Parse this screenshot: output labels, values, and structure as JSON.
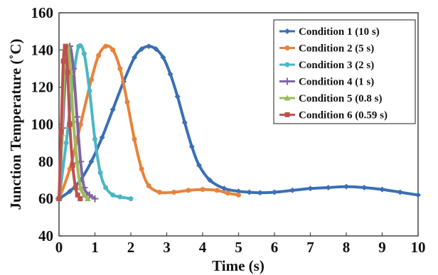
{
  "chart_data": {
    "type": "line",
    "title": "",
    "xlabel": "Time (s)",
    "ylabel": "Junction Temperature (˚C)",
    "xlim": [
      0,
      10
    ],
    "ylim": [
      40,
      160
    ],
    "x_ticks": [
      "0",
      "1",
      "2",
      "3",
      "4",
      "5",
      "6",
      "7",
      "8",
      "9",
      "10"
    ],
    "y_ticks": [
      "40",
      "60",
      "80",
      "100",
      "120",
      "140",
      "160"
    ],
    "grid": false,
    "legend_position": "top-right",
    "series": [
      {
        "name": "Condition 1 (10 s)",
        "color": "#3a6fb5",
        "marker": "diamond",
        "x": [
          0.0,
          0.3,
          0.6,
          0.9,
          1.2,
          1.5,
          1.8,
          2.1,
          2.3,
          2.5,
          2.7,
          2.9,
          3.1,
          3.3,
          3.5,
          3.7,
          3.9,
          4.2,
          4.6,
          5.0,
          5.3,
          5.6,
          6.0,
          6.5,
          7.0,
          7.5,
          8.0,
          8.5,
          9.0,
          9.5,
          10.0
        ],
        "y": [
          60,
          64,
          70,
          80,
          93,
          108,
          123,
          136,
          140.5,
          142,
          140.5,
          136,
          127,
          115,
          101,
          88,
          78,
          70,
          65.5,
          64,
          63.5,
          63.2,
          63.5,
          64.5,
          65.5,
          66,
          66.5,
          66,
          65,
          63.5,
          62
        ]
      },
      {
        "name": "Condition 2 (5 s)",
        "color": "#e8833a",
        "marker": "circle",
        "x": [
          0.0,
          0.3,
          0.6,
          0.9,
          1.1,
          1.3,
          1.5,
          1.7,
          1.9,
          2.1,
          2.3,
          2.5,
          2.8,
          3.2,
          3.6,
          4.0,
          4.4,
          4.7,
          5.0
        ],
        "y": [
          60,
          76,
          100,
          124,
          137,
          142,
          140,
          130,
          112,
          92,
          76,
          67,
          63.5,
          63.5,
          64.5,
          65,
          64.5,
          63,
          62
        ]
      },
      {
        "name": "Condition 3 (2 s)",
        "color": "#4bb6c4",
        "marker": "circle",
        "x": [
          0.0,
          0.2,
          0.4,
          0.55,
          0.7,
          0.85,
          1.0,
          1.15,
          1.3,
          1.5,
          1.7,
          2.0
        ],
        "y": [
          60,
          90,
          125,
          142,
          138,
          118,
          92,
          74,
          66,
          62,
          61,
          60
        ]
      },
      {
        "name": "Condition 4 (1 s)",
        "color": "#8064a2",
        "marker": "plus",
        "x": [
          0.0,
          0.1,
          0.2,
          0.3,
          0.4,
          0.5,
          0.6,
          0.7,
          0.85,
          1.0
        ],
        "y": [
          60,
          98,
          132,
          142,
          130,
          104,
          80,
          66,
          62,
          60
        ]
      },
      {
        "name": "Condition 5 (0.8 s)",
        "color": "#9bbb59",
        "marker": "triangle",
        "x": [
          0.0,
          0.08,
          0.16,
          0.24,
          0.32,
          0.4,
          0.5,
          0.6,
          0.7,
          0.8
        ],
        "y": [
          60,
          95,
          132,
          142,
          128,
          102,
          80,
          66,
          62,
          60
        ]
      },
      {
        "name": "Condition 6 (0.59 s)",
        "color": "#c0504d",
        "marker": "square",
        "x": [
          0.0,
          0.06,
          0.12,
          0.18,
          0.24,
          0.3,
          0.38,
          0.46,
          0.52,
          0.59
        ],
        "y": [
          60,
          96,
          134,
          142,
          128,
          100,
          78,
          66,
          62,
          60
        ]
      }
    ]
  }
}
